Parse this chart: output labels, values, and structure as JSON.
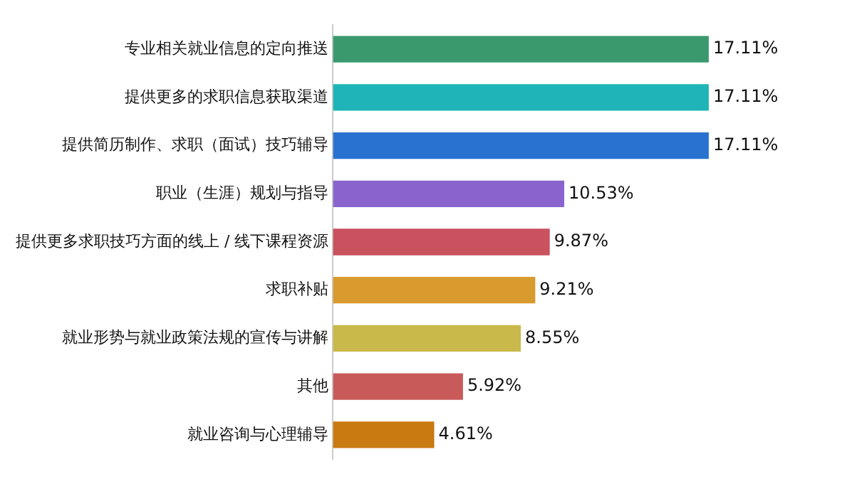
{
  "chart_data": {
    "type": "bar",
    "orientation": "horizontal",
    "categories": [
      "专业相关就业信息的定向推送",
      "提供更多的求职信息获取渠道",
      "提供简历制作、求职（面试）技巧辅导",
      "职业（生涯）规划与指导",
      "提供更多求职技巧方面的线上 / 线下课程资源",
      "求职补贴",
      "就业形势与就业政策法规的宣传与讲解",
      "其他",
      "就业咨询与心理辅导"
    ],
    "values": [
      17.11,
      17.11,
      17.11,
      10.53,
      9.87,
      9.21,
      8.55,
      5.92,
      4.61
    ],
    "colors": [
      "#3a9a6e",
      "#1fb5b8",
      "#2a72d0",
      "#8a64cc",
      "#c9525e",
      "#d99a2e",
      "#c9b84a",
      "#c95a5a",
      "#c97a10"
    ],
    "value_labels": [
      "17.11%",
      "17.11%",
      "17.11%",
      "10.53%",
      "9.87%",
      "9.21%",
      "8.55%",
      "5.92%",
      "4.61%"
    ],
    "grid": false,
    "legend": false
  }
}
